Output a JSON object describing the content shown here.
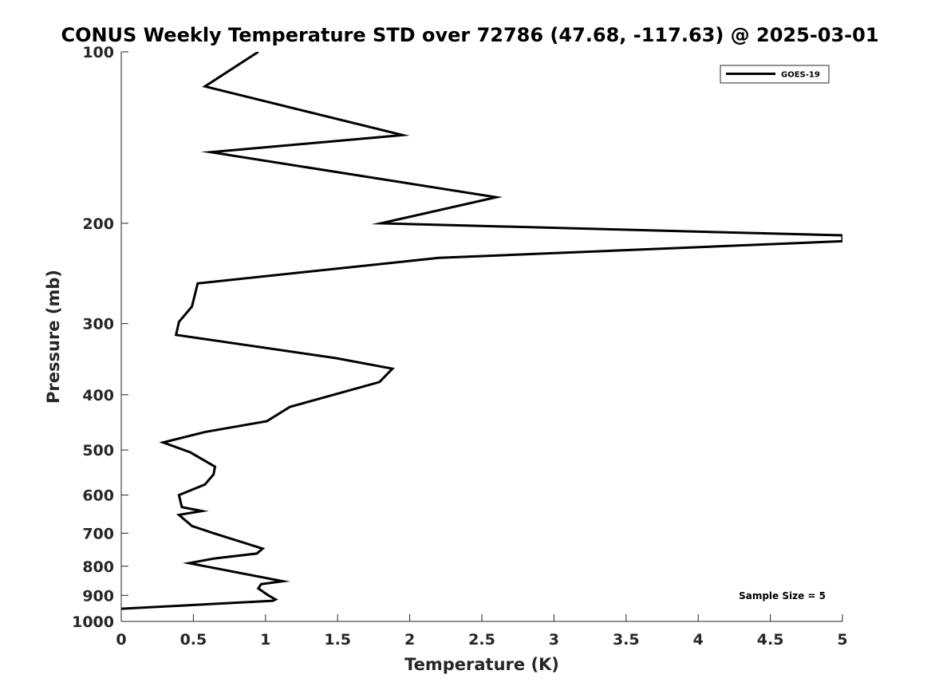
{
  "chart_data": {
    "type": "line",
    "title": "CONUS Weekly Temperature STD over 72786 (47.68, -117.63) @ 2025-03-01",
    "xlabel": "Temperature (K)",
    "ylabel": "Pressure (mb)",
    "xlim": [
      0,
      5
    ],
    "ylim": [
      100,
      1000
    ],
    "yscale": "log",
    "y_reversed": true,
    "grid": false,
    "x_ticks": [
      0,
      0.5,
      1,
      1.5,
      2,
      2.5,
      3,
      3.5,
      4,
      4.5,
      5
    ],
    "x_tick_labels": [
      "0",
      "0.5",
      "1",
      "1.5",
      "2",
      "2.5",
      "3",
      "3.5",
      "4",
      "4.5",
      "5"
    ],
    "y_ticks": [
      100,
      200,
      300,
      400,
      500,
      600,
      700,
      800,
      900,
      1000
    ],
    "y_tick_labels": [
      "100",
      "200",
      "300",
      "400",
      "500",
      "600",
      "700",
      "800",
      "900",
      "1000"
    ],
    "legend_position": "top-right",
    "series": [
      {
        "name": "GOES-19",
        "color": "#000000",
        "x": [
          0.95,
          0.58,
          1.95,
          0.62,
          2.6,
          1.8,
          5.0,
          5.0,
          2.2,
          0.53,
          0.49,
          0.4,
          0.38,
          1.49,
          1.88,
          1.79,
          1.17,
          1.01,
          0.58,
          0.29,
          0.48,
          0.65,
          0.64,
          0.58,
          0.4,
          0.42,
          0.56,
          0.4,
          0.49,
          0.64,
          0.98,
          0.94,
          0.65,
          0.47,
          0.58,
          1.12,
          0.97,
          0.95,
          1.02,
          1.07,
          1.05,
          0.0
        ],
        "y": [
          100,
          115,
          140,
          150,
          180,
          200,
          210,
          215,
          230,
          255,
          280,
          298,
          314,
          345,
          360,
          380,
          420,
          445,
          465,
          485,
          505,
          535,
          552,
          575,
          600,
          630,
          640,
          650,
          680,
          700,
          745,
          760,
          775,
          790,
          800,
          850,
          860,
          875,
          900,
          915,
          920,
          950
        ]
      }
    ],
    "annotations": [
      "Sample Size = 5"
    ]
  }
}
